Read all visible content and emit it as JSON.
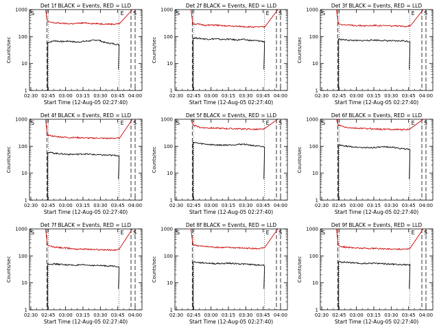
{
  "chart_data": {
    "type": "line",
    "xlabel": "Start Time (12-Aug-05 02:27:40)",
    "ylabel": "Counts/sec",
    "x_ticks": [
      "02:30",
      "02:45",
      "03:00",
      "03:15",
      "03:30",
      "03:45",
      "04:00"
    ],
    "y_ticks": [
      "1",
      "10",
      "100",
      "1000"
    ],
    "ylim": [
      1,
      1000
    ],
    "y_scale": "log",
    "colors": {
      "events": "#000000",
      "lld": "#cc0000"
    },
    "panels": [
      {
        "title": "Det 1f BLACK = Events, RED = LLD",
        "series": [
          {
            "values": [
              60,
              70,
              65,
              68,
              62,
              66,
              70,
              75,
              60,
              55,
              50
            ]
          },
          {
            "values": [
              350,
              320,
              310,
              300,
              305,
              320,
              310,
              300,
              295,
              290,
              300
            ]
          }
        ],
        "markers": [
          "S",
          "E",
          "S"
        ]
      },
      {
        "title": "Det 2f BLACK = Events, RED = LLD",
        "series": [
          {
            "values": [
              90,
              85,
              80,
              82,
              78,
              80,
              75,
              78,
              72,
              70,
              65
            ]
          },
          {
            "values": [
              300,
              280,
              260,
              270,
              250,
              245,
              240,
              235,
              230,
              225,
              230
            ]
          }
        ],
        "markers": [
          "S",
          "E",
          "S"
        ]
      },
      {
        "title": "Det 3f BLACK = Events, RED = LLD",
        "series": [
          {
            "values": [
              80,
              75,
              72,
              70,
              72,
              74,
              72,
              70,
              68,
              70,
              65
            ]
          },
          {
            "values": [
              300,
              270,
              260,
              255,
              250,
              260,
              255,
              250,
              245,
              240,
              250
            ]
          }
        ],
        "markers": [
          "S",
          "E",
          "S"
        ]
      },
      {
        "title": "Det 4f BLACK = Events, RED = LLD",
        "series": [
          {
            "values": [
              60,
              55,
              52,
              50,
              50,
              52,
              50,
              48,
              47,
              46,
              45
            ]
          },
          {
            "values": [
              260,
              230,
              220,
              210,
              210,
              205,
              200,
              200,
              195,
              195,
              200
            ]
          }
        ],
        "markers": [
          "S",
          "E",
          "S"
        ]
      },
      {
        "title": "Det 5f BLACK = Events, RED = LLD",
        "series": [
          {
            "values": [
              140,
              125,
              118,
              112,
              110,
              112,
              115,
              120,
              110,
              100,
              95
            ]
          },
          {
            "values": [
              600,
              500,
              480,
              470,
              460,
              450,
              445,
              440,
              430,
              420,
              430
            ]
          }
        ],
        "markers": [
          "S",
          "E",
          "S"
        ]
      },
      {
        "title": "Det 6f BLACK = Events, RED = LLD",
        "series": [
          {
            "values": [
              110,
              100,
              95,
              90,
              88,
              90,
              92,
              95,
              88,
              80,
              78
            ]
          },
          {
            "values": [
              600,
              500,
              470,
              460,
              450,
              440,
              430,
              425,
              420,
              415,
              420
            ]
          }
        ],
        "markers": [
          "S",
          "E",
          "S"
        ]
      },
      {
        "title": "Det 7f BLACK = Events, RED = LLD",
        "series": [
          {
            "values": [
              50,
              50,
              48,
              46,
              45,
              46,
              45,
              44,
              43,
              42,
              40
            ]
          },
          {
            "values": [
              240,
              210,
              200,
              190,
              180,
              180,
              175,
              170,
              170,
              165,
              170
            ]
          }
        ],
        "markers": [
          "S",
          "E",
          "S"
        ]
      },
      {
        "title": "Det 8f BLACK = Events, RED = LLD",
        "series": [
          {
            "values": [
              60,
              56,
              54,
              52,
              52,
              54,
              52,
              50,
              48,
              46,
              45
            ]
          },
          {
            "values": [
              260,
              230,
              220,
              210,
              205,
              205,
              200,
              195,
              190,
              185,
              195
            ]
          }
        ],
        "markers": [
          "S",
          "E",
          "S"
        ]
      },
      {
        "title": "Det 9f BLACK = Events, RED = LLD",
        "series": [
          {
            "values": [
              60,
              58,
              55,
              52,
              52,
              54,
              52,
              50,
              48,
              47,
              46
            ]
          },
          {
            "values": [
              240,
              210,
              200,
              195,
              190,
              190,
              185,
              180,
              180,
              178,
              185
            ]
          }
        ],
        "markers": [
          "S",
          "E",
          "S"
        ]
      }
    ]
  }
}
